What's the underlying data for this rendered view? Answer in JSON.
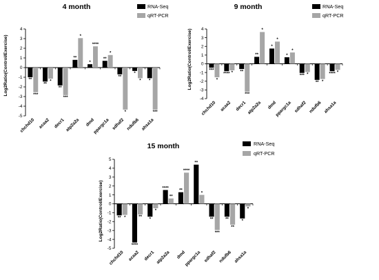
{
  "colors": {
    "rna_seq": "#000000",
    "qrt_pcr": "#a6a6a6"
  },
  "chart_data": [
    {
      "type": "bar",
      "title": "4 month",
      "ylabel": "Log2Ratio(Control/Exercise)",
      "ylim": [
        -5,
        4
      ],
      "yticks": [
        "4",
        "3",
        "2",
        "1",
        "0",
        "-1",
        "-2",
        "-3",
        "-4",
        "-5"
      ],
      "categories": [
        "chchd10",
        "acaa2",
        "decr1",
        "atp2a2a",
        "dmd",
        "ppargc1a",
        "sdhaf2",
        "ndufb6",
        "ahsa1a"
      ],
      "series": [
        {
          "name": "RNA-Seq",
          "values": [
            -1.0,
            -1.45,
            -1.85,
            0.8,
            0.35,
            0.7,
            -0.7,
            -0.35,
            -1.1
          ],
          "sig": [
            "**",
            "**",
            "**",
            "**",
            "*",
            "**",
            "**",
            "*",
            "*"
          ]
        },
        {
          "name": "qRT-PCR",
          "values": [
            -2.55,
            -1.15,
            -2.85,
            3.05,
            2.2,
            1.3,
            -4.35,
            -1.1,
            -4.35
          ],
          "sig": [
            "***",
            "*",
            "***",
            "*",
            "****",
            "*",
            "*",
            "*",
            "***"
          ]
        }
      ]
    },
    {
      "type": "bar",
      "title": "9 month",
      "ylabel": "Log2Ratio(Control/Exercise)",
      "ylim": [
        -4,
        4
      ],
      "yticks": [
        "4",
        "3",
        "2",
        "1",
        "0",
        "-1",
        "-2",
        "-3",
        "-4"
      ],
      "categories": [
        "chchd10",
        "acaa2",
        "decr1",
        "atp2a2a",
        "dmd",
        "ppargc1a",
        "sdhaf2",
        "ndufb6",
        "ahsa1a"
      ],
      "series": [
        {
          "name": "RNA-Seq",
          "values": [
            -0.45,
            -0.85,
            -0.6,
            0.8,
            1.75,
            0.75,
            -1.05,
            -1.85,
            -0.85
          ],
          "sig": [
            "***",
            "****",
            "**",
            "**",
            "*",
            "*",
            "***",
            "**",
            "****"
          ]
        },
        {
          "name": "qRT-PCR",
          "values": [
            -1.55,
            -0.75,
            -3.2,
            3.65,
            2.55,
            1.3,
            -0.95,
            -1.75,
            -0.7
          ],
          "sig": [
            "*",
            "*",
            "***",
            "*",
            "*",
            "*",
            "*",
            "*",
            "*"
          ]
        }
      ]
    },
    {
      "type": "bar",
      "title": "15 month",
      "ylabel": "Log2Ratio(Control/Exercise)",
      "ylim": [
        -5,
        5
      ],
      "yticks": [
        "5",
        "4",
        "3",
        "2",
        "1",
        "0",
        "-1",
        "-2",
        "-3",
        "-4",
        "-5"
      ],
      "categories": [
        "chchd10",
        "acaa2",
        "decr1",
        "atp2a2a",
        "dmd",
        "ppargc1a",
        "sdhaf2",
        "ndufb6",
        "ahsa1a"
      ],
      "series": [
        {
          "name": "RNA-Seq",
          "values": [
            -1.3,
            -4.35,
            -1.45,
            1.55,
            1.3,
            4.4,
            -1.45,
            -1.45,
            -1.65
          ],
          "sig": [
            "**",
            "****",
            "*",
            "****",
            "**",
            "**",
            "**",
            "**",
            "*"
          ]
        },
        {
          "name": "qRT-PCR",
          "values": [
            -1.25,
            -1.2,
            -0.5,
            0.6,
            3.5,
            1.0,
            -2.95,
            -2.35,
            -0.3
          ],
          "sig": [
            "*",
            "**",
            "*",
            "**",
            "****",
            "*",
            "***",
            "**",
            "*"
          ]
        }
      ]
    }
  ]
}
